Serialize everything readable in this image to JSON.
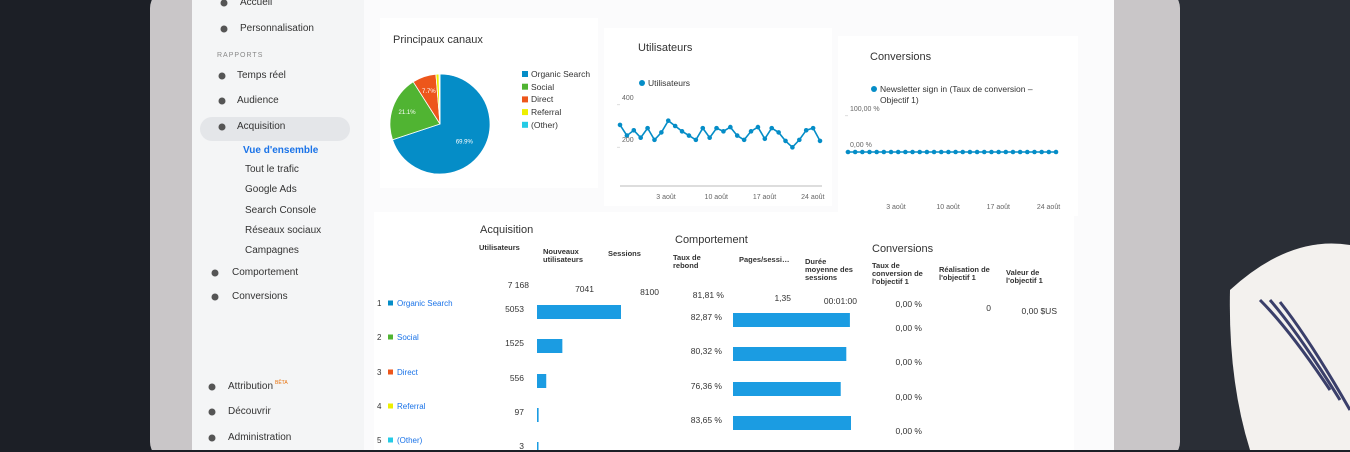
{
  "sidebar": {
    "top": [
      "Accueil",
      "Personnalisation"
    ],
    "section": "RAPPORTS",
    "reports": [
      "Temps réel",
      "Audience",
      "Acquisition"
    ],
    "active": "Vue d'ensemble",
    "sub": [
      "Tout le trafic",
      "Google Ads",
      "Search Console",
      "Réseaux sociaux",
      "Campagnes"
    ],
    "more": [
      "Comportement",
      "Conversions"
    ],
    "bottom": [
      "Attribution",
      "Découvrir",
      "Administration"
    ],
    "badge": "BÊTA"
  },
  "channels": {
    "type": "pie",
    "title": "Principaux canaux",
    "categories": [
      "Organic Search",
      "Social",
      "Direct",
      "Referral",
      "(Other)"
    ],
    "values": [
      69.9,
      21.1,
      7.7,
      1.0,
      0.3
    ],
    "value_labels": [
      "69.9%",
      "21.1%",
      "7.7%",
      null,
      null
    ],
    "colors": [
      "#058dc7",
      "#50b432",
      "#ed561b",
      "#edef00",
      "#24cbe5"
    ]
  },
  "users_chart": {
    "type": "line",
    "title": "Utilisateurs",
    "categories": [
      null,
      null,
      null,
      null,
      null,
      null,
      null,
      "3 août",
      null,
      null,
      null,
      null,
      null,
      null,
      "10 août",
      null,
      null,
      null,
      null,
      null,
      null,
      "17 août",
      null,
      null,
      null,
      null,
      null,
      null,
      "24 août",
      null
    ],
    "series": [
      {
        "name": "Utilisateurs",
        "color": "#058dc7",
        "values": [
          305,
          255,
          280,
          245,
          290,
          235,
          270,
          325,
          300,
          275,
          255,
          235,
          290,
          245,
          290,
          275,
          295,
          255,
          235,
          275,
          295,
          240,
          290,
          270,
          230,
          200,
          235,
          280,
          290,
          230
        ]
      }
    ],
    "ylim": [
      0,
      450
    ],
    "yticks": [
      200,
      400
    ]
  },
  "conversions_chart": {
    "type": "line",
    "title": "Conversions",
    "categories": [
      null,
      null,
      null,
      null,
      null,
      null,
      null,
      "3 août",
      null,
      null,
      null,
      null,
      null,
      null,
      "10 août",
      null,
      null,
      null,
      null,
      null,
      null,
      "17 août",
      null,
      null,
      null,
      null,
      null,
      null,
      "24 août",
      null
    ],
    "series": [
      {
        "name": "Newsletter sign in (Taux de conversion – Objectif 1)",
        "color": "#058dc7",
        "values": [
          0,
          0,
          0,
          0,
          0,
          0,
          0,
          0,
          0,
          0,
          0,
          0,
          0,
          0,
          0,
          0,
          0,
          0,
          0,
          0,
          0,
          0,
          0,
          0,
          0,
          0,
          0,
          0,
          0,
          0
        ]
      }
    ],
    "ylim": [
      0,
      110
    ],
    "yticks": [
      {
        "value": 100,
        "label": "100,00 %"
      },
      {
        "value": 0,
        "label": "0,00 %"
      }
    ]
  },
  "table": {
    "groups": [
      "Acquisition",
      "Comportement",
      "Conversions"
    ],
    "columns": [
      "Utilisateurs",
      "Nouveaux utilisateurs",
      "Sessions",
      "Taux de rebond",
      "Pages/sessi…",
      "Durée moyenne des sessions",
      "Taux de conversion de l'objectif 1",
      "Réalisation de l'objectif 1",
      "Valeur de l'objectif 1"
    ],
    "totals": [
      "7 168",
      "7041",
      "8100",
      "81,81 %",
      "1,35",
      "00:01:00",
      "0,00 %",
      "0",
      "0,00 $US"
    ],
    "rows": [
      {
        "rank": 1,
        "channel": "Organic Search",
        "users": 5053,
        "bounce": 82.87,
        "bounce_label": "82,87 %",
        "conversion": "0,00 %"
      },
      {
        "rank": 2,
        "channel": "Social",
        "users": 1525,
        "bounce": 80.32,
        "bounce_label": "80,32 %",
        "conversion": "0,00 %"
      },
      {
        "rank": 3,
        "channel": "Direct",
        "users": 556,
        "bounce": 76.36,
        "bounce_label": "76,36 %",
        "conversion": "0,00 %"
      },
      {
        "rank": 4,
        "channel": "Referral",
        "users": 97,
        "bounce": 83.65,
        "bounce_label": "83,65 %",
        "conversion": "0,00 %"
      },
      {
        "rank": 5,
        "channel": "(Other)",
        "users": 3
      }
    ]
  }
}
